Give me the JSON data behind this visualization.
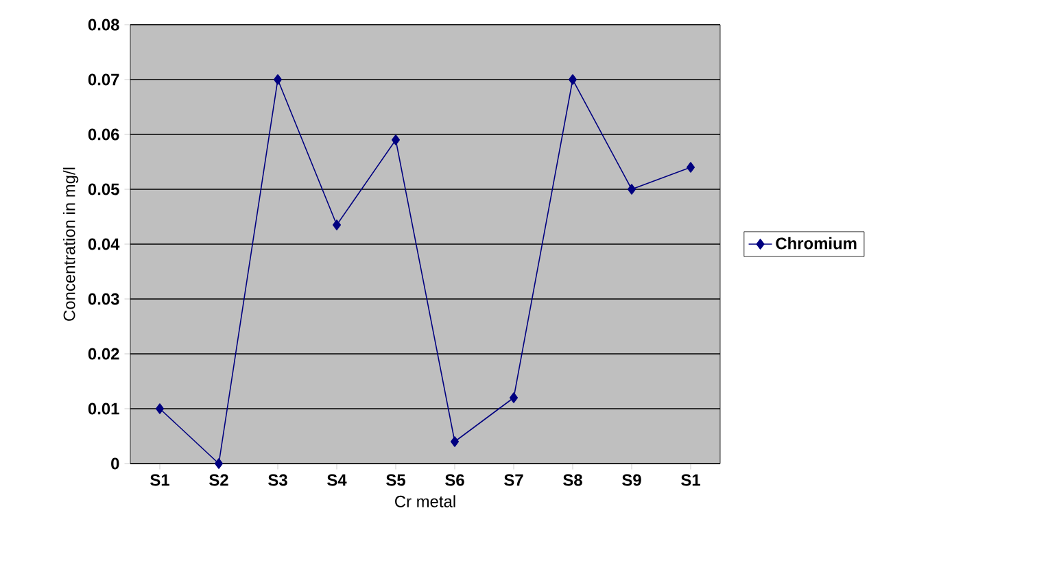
{
  "chart_data": {
    "type": "line",
    "xlabel": "Cr metal",
    "ylabel": "Concentration in mg/l",
    "categories": [
      "S1",
      "S2",
      "S3",
      "S4",
      "S5",
      "S6",
      "S7",
      "S8",
      "S9",
      "S1"
    ],
    "series": [
      {
        "name": "Chromium",
        "color": "#000080",
        "values": [
          0.01,
          0.0,
          0.07,
          0.0435,
          0.059,
          0.004,
          0.012,
          0.07,
          0.05,
          0.054
        ]
      }
    ],
    "ylim": [
      0,
      0.08
    ],
    "yticks": [
      0,
      0.01,
      0.02,
      0.03,
      0.04,
      0.05,
      0.06,
      0.07,
      0.08
    ],
    "grid": "y",
    "legend": "right",
    "marker": "diamond",
    "line_style": "solid"
  }
}
